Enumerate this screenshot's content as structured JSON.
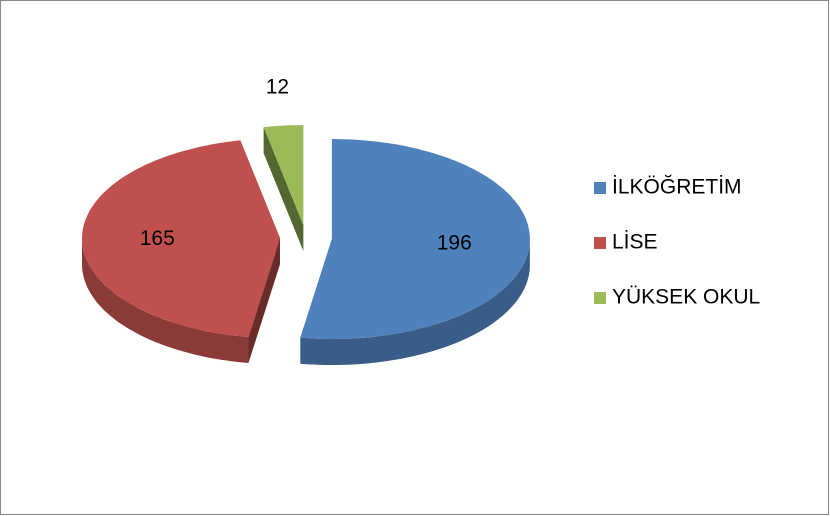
{
  "chart_data": {
    "type": "pie",
    "categories": [
      "İLKÖĞRETİM",
      "LİSE",
      "YÜKSEK OKUL"
    ],
    "values": [
      196,
      165,
      12
    ],
    "colors": [
      "#4f81bd",
      "#c0504d",
      "#9bbb59"
    ],
    "legend": "right",
    "exploded": true,
    "three_d": true
  }
}
